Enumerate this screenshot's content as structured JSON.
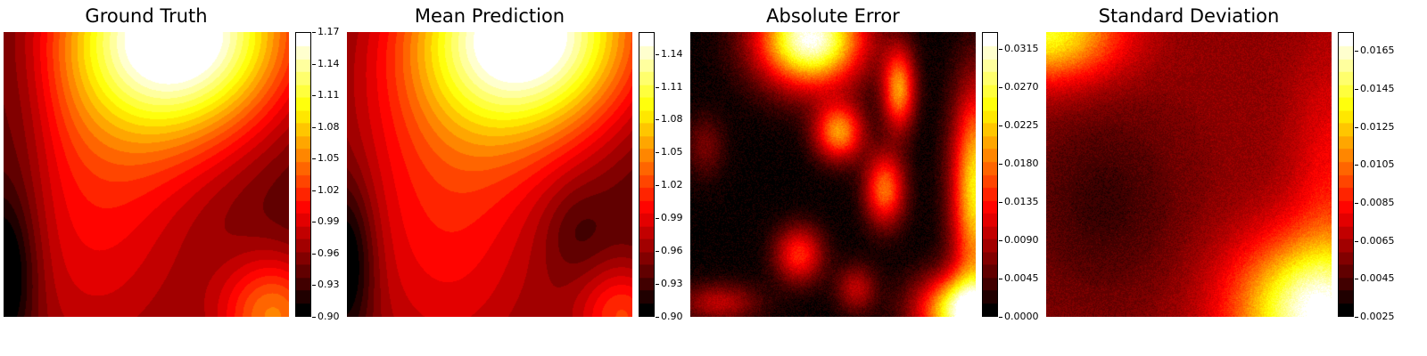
{
  "chart_data": [
    {
      "type": "heatmap",
      "title": "Ground Truth",
      "colormap": "hot",
      "colorbar": {
        "range": [
          0.9,
          1.17
        ],
        "ticks": [
          "0.90",
          "0.93",
          "0.96",
          "0.99",
          "1.02",
          "1.05",
          "1.08",
          "1.11",
          "1.14",
          "1.17"
        ]
      },
      "field_features": [
        {
          "kind": "max",
          "location": "top-center",
          "value": 1.17
        },
        {
          "kind": "min",
          "location": "left-edge",
          "value": 0.9
        },
        {
          "kind": "local-high",
          "location": "bottom-right",
          "value": 1.04
        }
      ],
      "axes_visible": false
    },
    {
      "type": "heatmap",
      "title": "Mean Prediction",
      "colormap": "hot",
      "colorbar": {
        "range": [
          0.9,
          1.16
        ],
        "ticks": [
          "0.90",
          "0.93",
          "0.96",
          "0.99",
          "1.02",
          "1.05",
          "1.08",
          "1.11",
          "1.14"
        ]
      },
      "field_features": [
        {
          "kind": "max",
          "location": "top-center",
          "value": 1.16
        },
        {
          "kind": "min",
          "location": "left-edge",
          "value": 0.9
        },
        {
          "kind": "local-high",
          "location": "bottom-right",
          "value": 1.03
        }
      ],
      "axes_visible": false
    },
    {
      "type": "heatmap",
      "title": "Absolute Error",
      "colormap": "hot",
      "colorbar": {
        "range": [
          0.0,
          0.0335
        ],
        "ticks": [
          "0.0000",
          "0.0045",
          "0.0090",
          "0.0135",
          "0.0180",
          "0.0225",
          "0.0270",
          "0.0315"
        ]
      },
      "field_features": [
        {
          "kind": "max",
          "location": "top-center-left",
          "value": 0.033
        },
        {
          "kind": "high",
          "location": "bottom-right",
          "value": 0.032
        },
        {
          "kind": "high",
          "location": "right-edge",
          "value": 0.026
        },
        {
          "kind": "low",
          "location": "center-left",
          "value": 0.0005
        }
      ],
      "axes_visible": false
    },
    {
      "type": "heatmap",
      "title": "Standard Deviation",
      "colormap": "hot",
      "colorbar": {
        "range": [
          0.0025,
          0.0175
        ],
        "ticks": [
          "0.0025",
          "0.0045",
          "0.0065",
          "0.0085",
          "0.0105",
          "0.0125",
          "0.0145",
          "0.0165"
        ]
      },
      "field_features": [
        {
          "kind": "max",
          "location": "bottom-right",
          "value": 0.0175
        },
        {
          "kind": "high",
          "location": "top-left",
          "value": 0.015
        },
        {
          "kind": "low",
          "location": "center-left",
          "value": 0.004
        }
      ],
      "axes_visible": false
    }
  ]
}
